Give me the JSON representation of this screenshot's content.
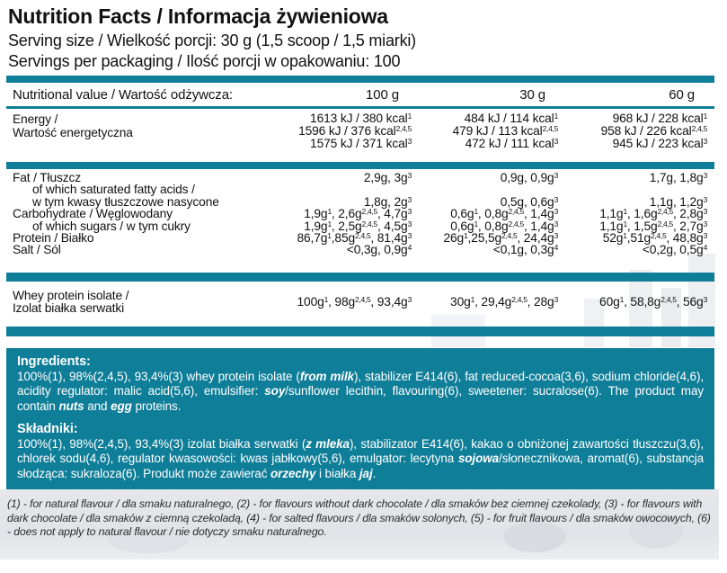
{
  "colors": {
    "accent_teal": "#0f7e98",
    "text": "#111111",
    "ingredients_text": "#ffffff"
  },
  "header": {
    "title": "Nutrition Facts / Informacja żywieniowa",
    "serving_size": "Serving size / Wielkość porcji: 30 g (1,5 scoop / 1,5 miarki)",
    "servings_per_package": "Servings per packaging / Ilość porcji w opakowaniu: 100"
  },
  "table": {
    "head": {
      "label": "Nutritional value / Wartość odżywcza:",
      "col_100g": "100 g",
      "col_30g": "30 g",
      "col_60g": "60 g"
    },
    "energy": {
      "label_line1": "Energy /",
      "label_line2": "Wartość energetyczna",
      "v100": [
        "1613 kJ / 380 kcal^{1}",
        "1596 kJ / 376 kcal^{2,4,5}",
        "1575 kJ / 371 kcal^{3}"
      ],
      "v30": [
        "484 kJ / 114 kcal^{1}",
        "479 kJ / 113 kcal^{2,4,5}",
        "472 kJ / 111 kcal^{3}"
      ],
      "v60": [
        "968 kJ / 228 kcal^{1}",
        "958 kJ / 226 kcal^{2,4,5}",
        "945 kJ / 223 kcal^{3}"
      ]
    },
    "fat": {
      "label": "Fat / Tłuszcz",
      "v100": "2,9g, 3g^{3}",
      "v30": "0,9g, 0,9g^{3}",
      "v60": "1,7g, 1,8g^{3}"
    },
    "saturated": {
      "label_line1": "of which saturated fatty acids /",
      "label_line2": "w tym kwasy tłuszczowe nasycone",
      "v100": "1,8g, 2g^{3}",
      "v30": "0,5g, 0,6g^{3}",
      "v60": "1,1g, 1,2g^{3}"
    },
    "carbohydrate": {
      "label": "Carbohydrate / Węglowodany",
      "v100": "1,9g^{1}, 2,6g^{2,4,5}, 4,7g^{3}",
      "v30": "0,6g^{1}, 0,8g^{2,4,5}, 1,4g^{3}",
      "v60": "1,1g^{1}, 1,6g^{2,4,5}, 2,8g^{3}"
    },
    "sugars": {
      "label": "of which sugars / w tym cukry",
      "v100": "1,9g^{1}, 2,5g^{2,4,5}, 4,5g^{3}",
      "v30": "0,6g^{1}, 0,8g^{2,4,5}, 1,4g^{3}",
      "v60": "1,1g^{1}, 1,5g^{2,4,5}, 2,7g^{3}"
    },
    "protein": {
      "label": "Protein / Białko",
      "v100": "86,7g^{1},85g^{2,4,5}, 81,4g^{3}",
      "v30": "26g^{1},25,5g^{2,4,5}, 24,4g^{3}",
      "v60": "52g^{1},51g^{2,4,5}, 48,8g^{3}"
    },
    "salt": {
      "label": "Salt / Sól",
      "v100": "<0,3g, 0,9g^{4}",
      "v30": "<0,1g, 0,3g^{4}",
      "v60": "<0,2g, 0,5g^{4}"
    },
    "whey": {
      "label_line1": "Whey protein isolate /",
      "label_line2": "Izolat białka serwatki",
      "v100": "100g^{1}, 98g^{2,4,5}, 93,4g^{3}",
      "v30": "30g^{1}, 29,4g^{2,4,5}, 28g^{3}",
      "v60": "60g^{1}, 58,8g^{2,4,5}, 56g^{3}"
    }
  },
  "ingredients": {
    "heading_en": "Ingredients:",
    "text_en": "100%(1), 98%(2,4,5), 93,4%(3) whey protein isolate (**from milk**), stabilizer E414(6), fat reduced-cocoa(3,6), sodium chloride(4,6), acidity regulator: malic acid(5,6), emulsifier: **soy**/sunflower lecithin, flavouring(6), sweetener: sucralose(6). The product may contain **nuts** and **egg** proteins.",
    "heading_pl": "Składniki:",
    "text_pl": "100%(1), 98%(2,4,5), 93,4%(3) izolat białka serwatki (**z mleka**), stabilizator E414(6), kakao o obniżonej zawartości tłuszczu(3,6), chlorek sodu(4,6), regulator kwasowości: kwas jabłkowy(5,6), emulgator: lecytyna **sojowa**/słonecznikowa, aromat(6), substancja słodząca: sukraloza(6). Produkt może zawierać **orzechy** i białka **jaj**."
  },
  "footnotes": {
    "text": "(1) - for natural flavour / dla smaku naturalnego, (2) - for flavours without dark chocolate / dla smaków bez ciemnej czekolady, (3) - for flavours with dark chocolate / dla smaków z ciemną czekoladą, (4) - for salted flavours / dla smaków solonych, (5) - for fruit flavours / dla smaków owocowych, (6) - does not apply to natural flavour / nie dotyczy smaku naturalnego."
  }
}
